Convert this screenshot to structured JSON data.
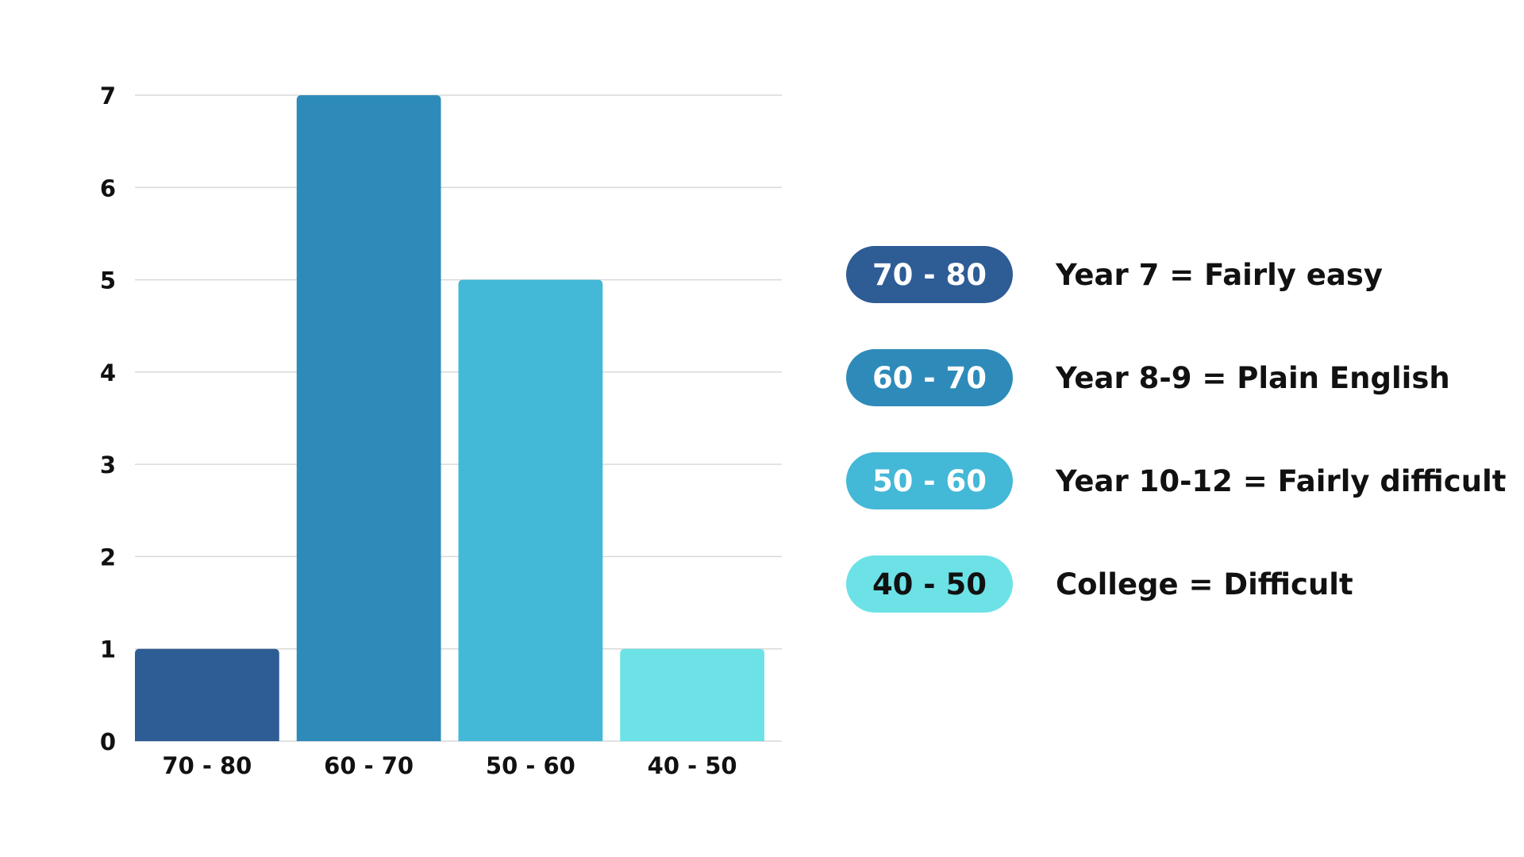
{
  "chart_data": {
    "type": "bar",
    "categories": [
      "70 - 80",
      "60 - 70",
      "50 - 60",
      "40 - 50"
    ],
    "values": [
      1,
      7,
      5,
      1
    ],
    "colors": [
      "#2e5c95",
      "#2e8bb9",
      "#43b8d7",
      "#6ce2e6"
    ],
    "ylim": [
      0,
      7
    ],
    "yticks": [
      0,
      1,
      2,
      3,
      4,
      5,
      6,
      7
    ],
    "grid": true,
    "legend_placement": "right"
  },
  "legend": [
    {
      "range": "70 - 80",
      "description": "Year 7 = Fairly easy",
      "color": "#2e5c95",
      "text_color": "#ffffff"
    },
    {
      "range": "60 - 70",
      "description": "Year 8-9 = Plain English",
      "color": "#2e8bb9",
      "text_color": "#ffffff"
    },
    {
      "range": "50 - 60",
      "description": "Year 10-12 = Fairly difficult",
      "color": "#43b8d7",
      "text_color": "#ffffff"
    },
    {
      "range": "40 - 50",
      "description": "College = Difficult",
      "color": "#6ce2e6",
      "text_color": "#111111"
    }
  ]
}
